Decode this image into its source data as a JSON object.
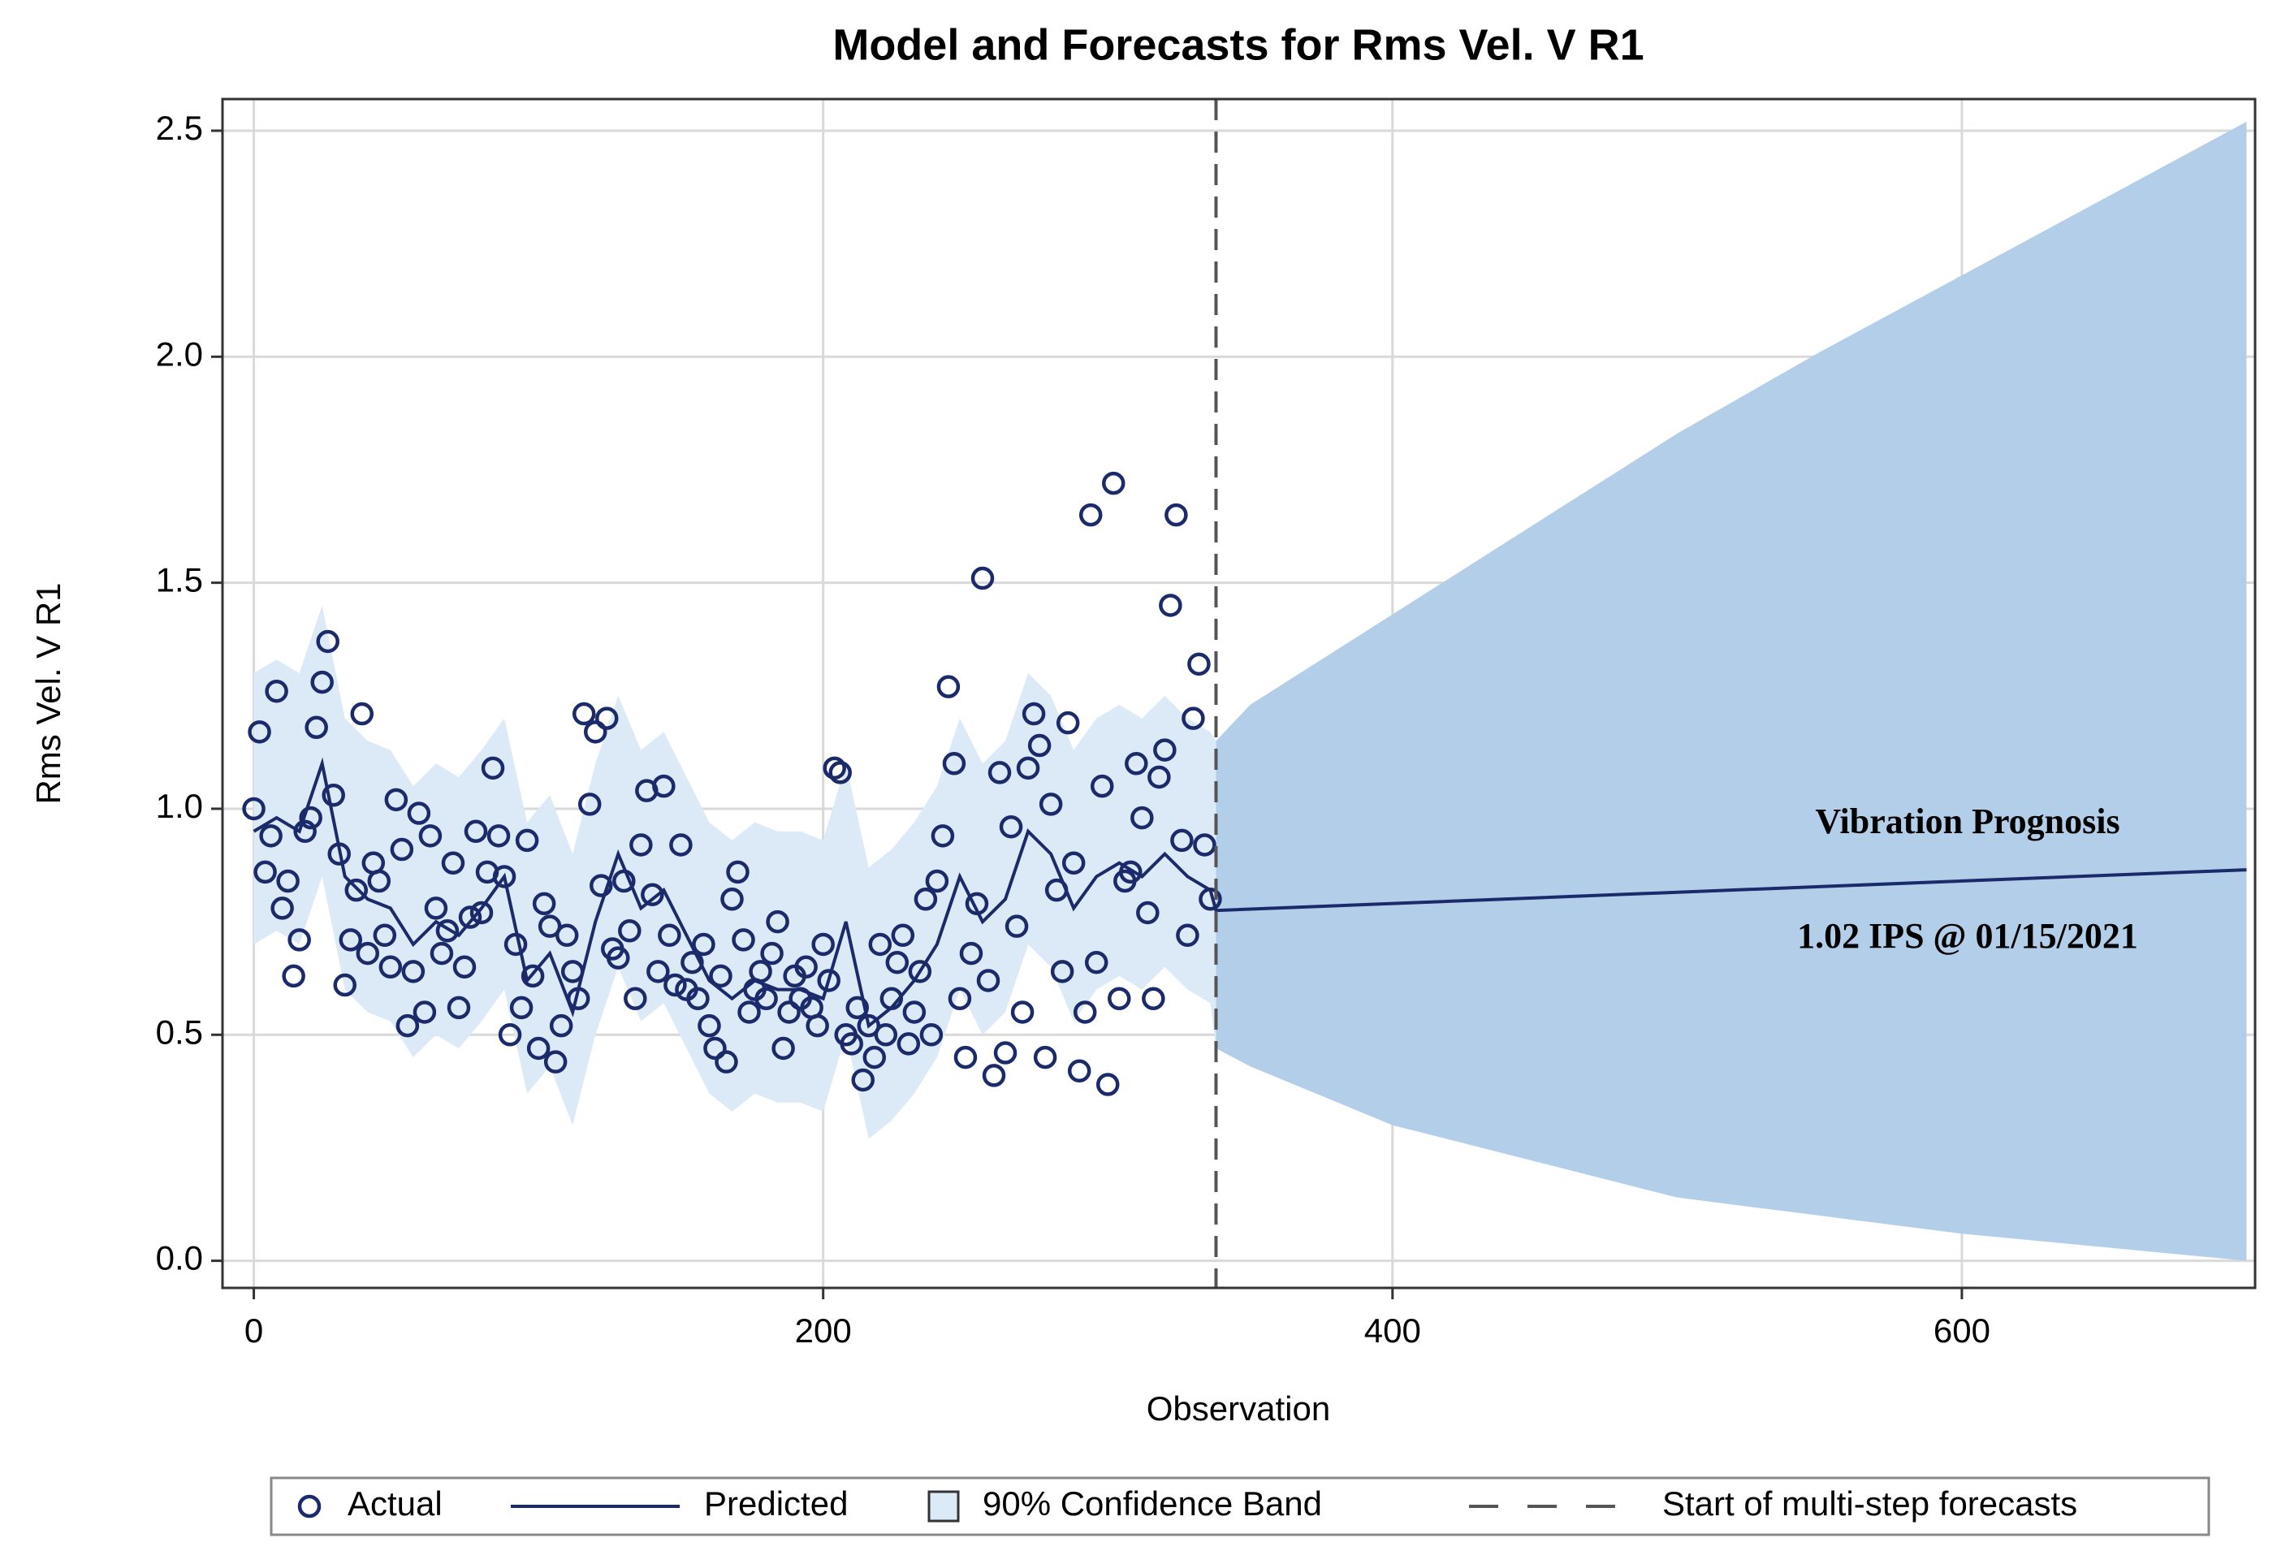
{
  "chart_data": {
    "type": "scatter",
    "title": "Model and Forecasts for Rms Vel. V R1",
    "x_label": "Observation",
    "y_label": "Rms Vel. V R1",
    "xlim": [
      -11,
      703
    ],
    "ylim": [
      -0.06,
      2.57
    ],
    "xticks": [
      0,
      200,
      400,
      600
    ],
    "yticks": [
      {
        "value": 0,
        "label": "0.0"
      },
      0.5,
      {
        "value": 1,
        "label": "1.0"
      },
      1.5,
      {
        "value": 2,
        "label": "2.0"
      },
      2.5
    ],
    "grid": true,
    "series": [
      {
        "name": "Actual",
        "kind": "points",
        "color": "#1b2a6b",
        "x": [
          0,
          2,
          4,
          6,
          8,
          10,
          12,
          14,
          16,
          18,
          20,
          22,
          24,
          26,
          28,
          30,
          32,
          34,
          36,
          38,
          40,
          42,
          44,
          46,
          48,
          50,
          52,
          54,
          56,
          58,
          60,
          62,
          64,
          66,
          68,
          70,
          72,
          74,
          76,
          78,
          80,
          82,
          84,
          86,
          88,
          90,
          92,
          94,
          96,
          98,
          100,
          102,
          104,
          106,
          108,
          110,
          112,
          114,
          116,
          118,
          120,
          122,
          124,
          126,
          128,
          130,
          132,
          134,
          136,
          138,
          140,
          142,
          144,
          146,
          148,
          150,
          152,
          154,
          156,
          158,
          160,
          162,
          164,
          166,
          168,
          170,
          172,
          174,
          176,
          178,
          180,
          182,
          184,
          186,
          188,
          190,
          192,
          194,
          196,
          198,
          200,
          202,
          204,
          206,
          208,
          210,
          212,
          214,
          216,
          218,
          220,
          222,
          224,
          226,
          228,
          230,
          232,
          234,
          236,
          238,
          240,
          242,
          244,
          246,
          248,
          250,
          252,
          254,
          256,
          258,
          260,
          262,
          264,
          266,
          268,
          270,
          272,
          274,
          276,
          278,
          280,
          282,
          284,
          286,
          288,
          290,
          292,
          294,
          296,
          298,
          300,
          302,
          304,
          306,
          308,
          310,
          312,
          314,
          316,
          318,
          320,
          322,
          324,
          326,
          328,
          330,
          332,
          334,
          336
        ],
        "values": [
          1.0,
          1.17,
          0.86,
          0.94,
          1.26,
          0.78,
          0.84,
          0.63,
          0.71,
          0.95,
          0.98,
          1.18,
          1.28,
          1.37,
          1.03,
          0.9,
          0.61,
          0.71,
          0.82,
          1.21,
          0.68,
          0.88,
          0.84,
          0.72,
          0.65,
          1.02,
          0.91,
          0.52,
          0.64,
          0.99,
          0.55,
          0.94,
          0.78,
          0.68,
          0.73,
          0.88,
          0.56,
          0.65,
          0.76,
          0.95,
          0.77,
          0.86,
          1.09,
          0.94,
          0.85,
          0.5,
          0.7,
          0.56,
          0.93,
          0.63,
          0.47,
          0.79,
          0.74,
          0.44,
          0.52,
          0.72,
          0.64,
          0.58,
          1.21,
          1.01,
          1.17,
          0.83,
          1.2,
          0.69,
          0.67,
          0.84,
          0.73,
          0.58,
          0.92,
          1.04,
          0.81,
          0.64,
          1.05,
          0.72,
          0.61,
          0.92,
          0.6,
          0.66,
          0.58,
          0.7,
          0.52,
          0.47,
          0.63,
          0.44,
          0.8,
          0.86,
          0.71,
          0.55,
          0.6,
          0.64,
          0.58,
          0.68,
          0.75,
          0.47,
          0.55,
          0.63,
          0.58,
          0.65,
          0.56,
          0.52,
          0.7,
          0.62,
          1.09,
          1.08,
          0.5,
          0.48,
          0.56,
          0.4,
          0.52,
          0.45,
          0.7,
          0.5,
          0.58,
          0.66,
          0.72,
          0.48,
          0.55,
          0.64,
          0.8,
          0.5,
          0.84,
          0.94,
          1.27,
          1.1,
          0.58,
          0.45,
          0.68,
          0.79,
          1.51,
          0.62,
          0.41,
          1.08,
          0.46,
          0.96,
          0.74,
          0.55,
          1.09,
          1.21,
          1.14,
          0.45,
          1.01,
          0.82,
          0.64,
          1.19,
          0.88,
          0.42,
          0.55,
          1.65,
          0.66,
          1.05,
          0.39,
          1.72,
          0.58,
          0.84,
          0.86,
          1.1,
          0.98,
          0.77,
          0.58,
          1.07,
          1.13,
          1.45,
          1.65,
          0.93,
          0.72,
          1.2,
          1.32,
          0.92,
          0.8
        ]
      },
      {
        "name": "Predicted",
        "kind": "line",
        "color": "#1b2a6b",
        "x": [
          0,
          8,
          16,
          24,
          32,
          40,
          48,
          56,
          64,
          72,
          80,
          88,
          96,
          104,
          112,
          120,
          128,
          136,
          144,
          152,
          160,
          168,
          176,
          184,
          192,
          200,
          208,
          216,
          224,
          232,
          240,
          248,
          256,
          264,
          272,
          280,
          288,
          296,
          304,
          312,
          320,
          328,
          336,
          338,
          700
        ],
        "values": [
          0.95,
          0.98,
          0.95,
          1.1,
          0.85,
          0.8,
          0.78,
          0.7,
          0.75,
          0.72,
          0.78,
          0.85,
          0.62,
          0.68,
          0.55,
          0.75,
          0.9,
          0.78,
          0.82,
          0.72,
          0.62,
          0.58,
          0.62,
          0.6,
          0.6,
          0.58,
          0.75,
          0.52,
          0.56,
          0.62,
          0.7,
          0.85,
          0.75,
          0.8,
          0.95,
          0.9,
          0.78,
          0.85,
          0.88,
          0.85,
          0.9,
          0.85,
          0.82,
          0.775,
          0.865
        ]
      },
      {
        "name": "90% Confidence Band",
        "kind": "band",
        "color": "#b3cee8",
        "history_color": "#dce9f6",
        "x": [
          0,
          8,
          16,
          24,
          32,
          40,
          48,
          56,
          64,
          72,
          80,
          88,
          96,
          104,
          112,
          120,
          128,
          136,
          144,
          152,
          160,
          168,
          176,
          184,
          192,
          200,
          208,
          216,
          224,
          232,
          240,
          248,
          256,
          264,
          272,
          280,
          288,
          296,
          304,
          312,
          320,
          328,
          336,
          338,
          350,
          400,
          450,
          500,
          550,
          600,
          650,
          700
        ],
        "lower": [
          0.7,
          0.73,
          0.7,
          0.85,
          0.6,
          0.55,
          0.53,
          0.45,
          0.5,
          0.47,
          0.53,
          0.6,
          0.37,
          0.43,
          0.3,
          0.5,
          0.65,
          0.53,
          0.57,
          0.47,
          0.37,
          0.33,
          0.37,
          0.35,
          0.35,
          0.33,
          0.5,
          0.27,
          0.31,
          0.37,
          0.45,
          0.6,
          0.5,
          0.55,
          0.7,
          0.65,
          0.53,
          0.6,
          0.63,
          0.6,
          0.65,
          0.6,
          0.57,
          0.47,
          0.43,
          0.3,
          0.22,
          0.14,
          0.1,
          0.06,
          0.03,
          0.0
        ],
        "upper": [
          1.3,
          1.33,
          1.3,
          1.45,
          1.2,
          1.15,
          1.13,
          1.05,
          1.1,
          1.07,
          1.13,
          1.2,
          0.97,
          1.03,
          0.9,
          1.1,
          1.25,
          1.13,
          1.17,
          1.07,
          0.97,
          0.93,
          0.97,
          0.95,
          0.95,
          0.93,
          1.1,
          0.87,
          0.91,
          0.97,
          1.05,
          1.2,
          1.1,
          1.15,
          1.3,
          1.25,
          1.13,
          1.2,
          1.23,
          1.2,
          1.25,
          1.2,
          1.17,
          1.15,
          1.23,
          1.43,
          1.63,
          1.83,
          2.01,
          2.18,
          2.35,
          2.52
        ]
      }
    ],
    "forecast_start": {
      "name": "Start of multi-step forecasts",
      "x": 338,
      "color": "#555555"
    },
    "annotations": [
      "Vibration Prognosis",
      "1.02 IPS @ 01/15/2021"
    ]
  }
}
